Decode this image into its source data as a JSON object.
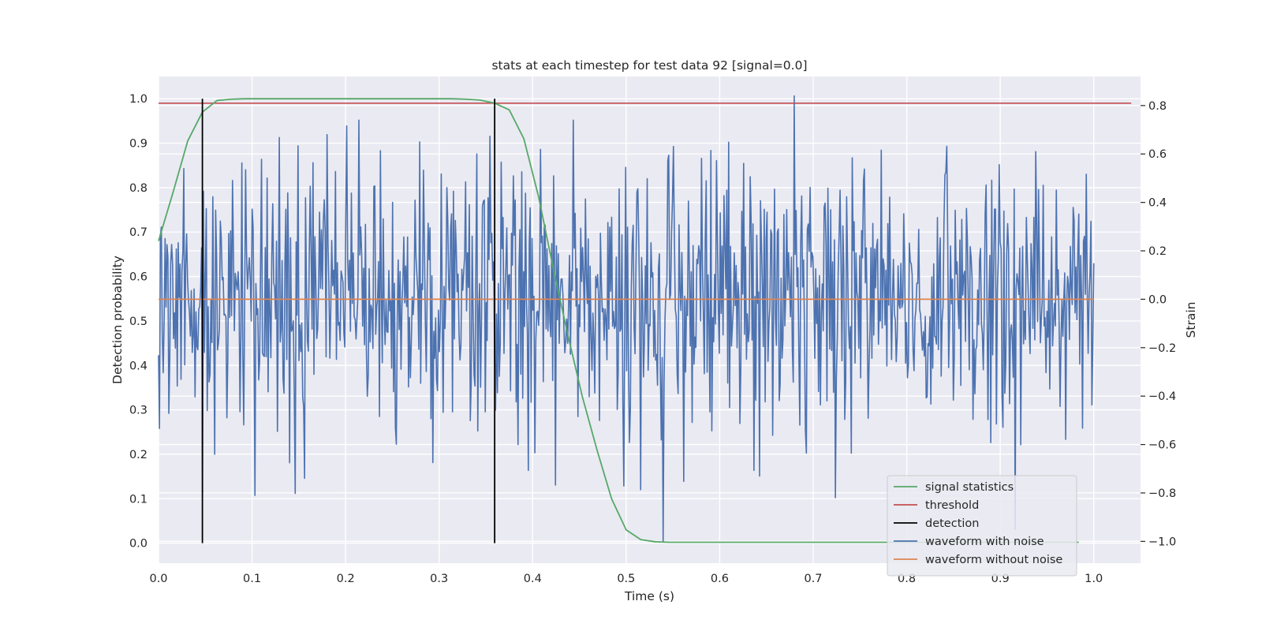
{
  "chart_data": {
    "type": "line",
    "title": "stats at each timestep for test data 92 [signal=0.0]",
    "xlabel": "Time (s)",
    "ylabel": "Detection probability",
    "y2label": "Strain",
    "xlim": [
      0.0,
      1.05
    ],
    "ylim": [
      -0.045,
      1.05
    ],
    "y2lim": [
      -1.09,
      0.92
    ],
    "x_ticks": [
      "0.0",
      "0.1",
      "0.2",
      "0.3",
      "0.4",
      "0.5",
      "0.6",
      "0.7",
      "0.8",
      "0.9",
      "1.0"
    ],
    "y_ticks": [
      "0.0",
      "0.1",
      "0.2",
      "0.3",
      "0.4",
      "0.5",
      "0.6",
      "0.7",
      "0.8",
      "0.9",
      "1.0"
    ],
    "y2_ticks": [
      "−1.0",
      "−0.8",
      "−0.6",
      "−0.4",
      "−0.2",
      "0.0",
      "0.2",
      "0.4",
      "0.6",
      "0.8"
    ],
    "grid": true,
    "legend_position": "lower-right",
    "colors": {
      "signal_statistics": "#55a868",
      "threshold": "#c44e52",
      "detection": "#000000",
      "waveform_with_noise": "#4c72b0",
      "waveform_without_noise": "#dd8452",
      "plot_background": "#eaeaf2",
      "grid": "#ffffff"
    },
    "series": [
      {
        "name": "signal statistics",
        "axis": "left",
        "x": [
          0.0,
          0.0156,
          0.0312,
          0.0469,
          0.0625,
          0.0781,
          0.0938,
          0.1094,
          0.125,
          0.2,
          0.25,
          0.3,
          0.3125,
          0.3281,
          0.3438,
          0.3594,
          0.375,
          0.3906,
          0.4063,
          0.4219,
          0.4375,
          0.4531,
          0.4688,
          0.4844,
          0.5,
          0.5156,
          0.5313,
          0.5469,
          0.5625,
          0.6,
          0.7,
          0.8,
          0.9,
          0.984
        ],
        "y": [
          0.68,
          0.79,
          0.905,
          0.97,
          0.996,
          0.999,
          1.0,
          1.0,
          1.0,
          1.0,
          1.0,
          1.0,
          1.0,
          0.999,
          0.997,
          0.99,
          0.975,
          0.91,
          0.78,
          0.62,
          0.47,
          0.33,
          0.21,
          0.1,
          0.03,
          0.008,
          0.003,
          0.002,
          0.002,
          0.002,
          0.002,
          0.002,
          0.002,
          0.002
        ]
      },
      {
        "name": "threshold",
        "axis": "left",
        "x": [
          0.0,
          1.04
        ],
        "y": [
          0.99,
          0.99
        ]
      },
      {
        "name": "detection",
        "axis": "left",
        "segments": [
          {
            "x": 0.0469,
            "y0": 0.0,
            "y1": 1.0
          },
          {
            "x": 0.3594,
            "y0": 0.0,
            "y1": 1.0
          }
        ]
      },
      {
        "name": "waveform with noise",
        "axis": "right",
        "x_start": 0.0,
        "x_end": 1.0,
        "n_points": 1000,
        "std": 0.29,
        "extremes": [
          {
            "x": 0.047,
            "y": -0.8
          },
          {
            "x": 0.103,
            "y": -0.81
          },
          {
            "x": 0.18,
            "y": 0.68
          },
          {
            "x": 0.279,
            "y": 0.65
          },
          {
            "x": 0.34,
            "y": 0.6
          },
          {
            "x": 0.54,
            "y": -1.0
          },
          {
            "x": 0.68,
            "y": 0.84
          },
          {
            "x": 0.916,
            "y": -0.95
          },
          {
            "x": 0.99,
            "y": 0.26
          }
        ]
      },
      {
        "name": "waveform without noise",
        "axis": "right",
        "x": [
          0.0,
          1.0
        ],
        "y": [
          0.0,
          0.0
        ]
      }
    ],
    "legend": [
      {
        "label": "signal statistics",
        "color": "#55a868"
      },
      {
        "label": "threshold",
        "color": "#c44e52"
      },
      {
        "label": "detection",
        "color": "#000000"
      },
      {
        "label": "waveform with noise",
        "color": "#4c72b0"
      },
      {
        "label": "waveform without noise",
        "color": "#dd8452"
      }
    ]
  }
}
